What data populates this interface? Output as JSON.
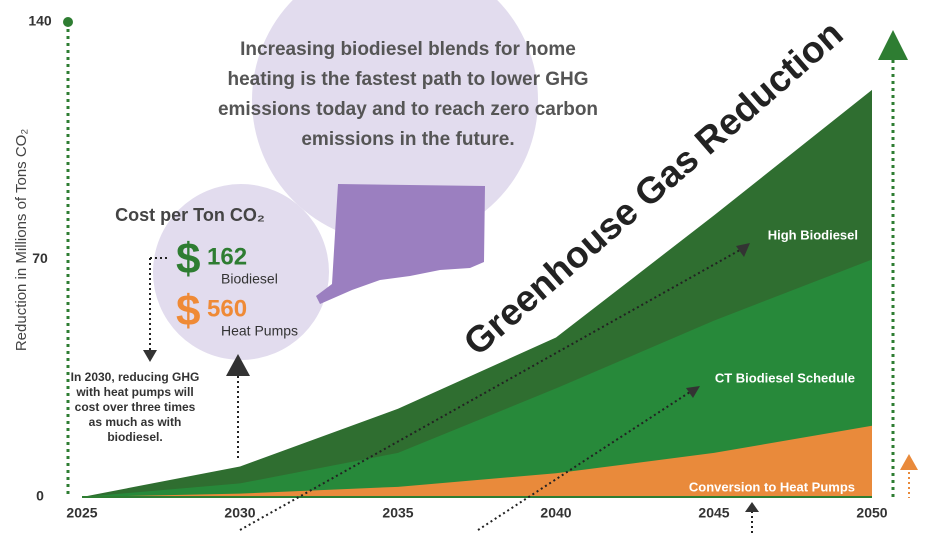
{
  "chart_data": {
    "type": "area",
    "title": "Greenhouse Gas Reduction",
    "y_label": "Reduction in Millions of Tons CO₂",
    "x": [
      2025,
      2030,
      2035,
      2040,
      2045,
      2050
    ],
    "xlim": [
      2025,
      2050
    ],
    "xticks": [
      2025,
      2030,
      2035,
      2040,
      2045,
      2050
    ],
    "ylim": [
      0,
      140
    ],
    "yticks": [
      0,
      70,
      140
    ],
    "series": [
      {
        "name": "High Biodiesel",
        "color": "#2f6e30",
        "values": [
          0,
          9,
          26,
          47,
          83,
          120
        ]
      },
      {
        "name": "CT Biodiesel Schedule",
        "color": "#27893a",
        "values": [
          0,
          4,
          13,
          32,
          52,
          70
        ]
      },
      {
        "name": "Conversion to Heat Pumps",
        "color": "#e98a3b",
        "values": [
          0,
          1,
          3,
          7,
          13,
          21
        ]
      }
    ],
    "message": [
      "Increasing biodiesel blends for home",
      "heating is the fastest path to lower GHG",
      "emissions today and to reach zero carbon",
      "emissions in the future."
    ],
    "cost_title": "Cost per Ton CO₂",
    "costs": [
      {
        "symbol": "$",
        "amount": "162",
        "label": "Biodiesel",
        "color": "#2e7d32"
      },
      {
        "symbol": "$",
        "amount": "560",
        "label": "Heat Pumps",
        "color": "#ef8a36"
      }
    ],
    "note": [
      "In 2030, reducing GHG",
      "with heat pumps will",
      "cost over three times",
      "as much as with",
      "biodiesel."
    ]
  }
}
